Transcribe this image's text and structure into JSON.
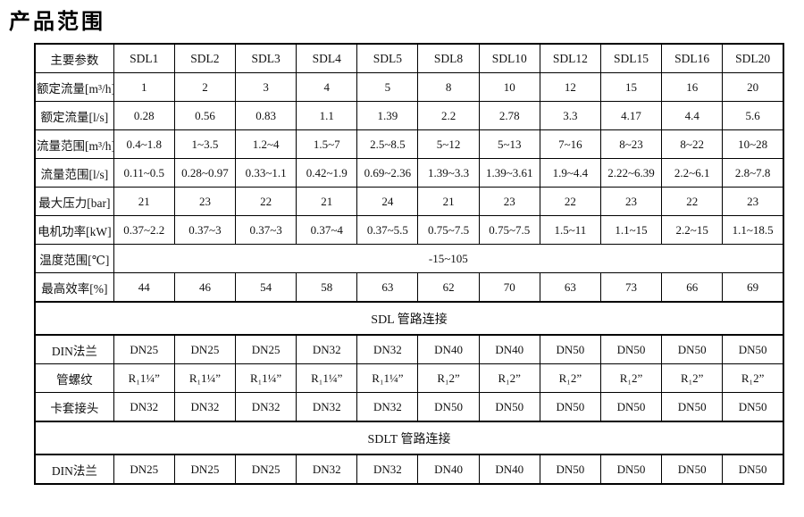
{
  "page_title": "产品范围",
  "table": {
    "header": {
      "param_label": "主要参数",
      "models": [
        "SDL1",
        "SDL2",
        "SDL3",
        "SDL4",
        "SDL5",
        "SDL8",
        "SDL10",
        "SDL12",
        "SDL15",
        "SDL16",
        "SDL20"
      ]
    },
    "rows": [
      {
        "type": "data",
        "name": "rated-flow-m3h",
        "label": "额定流量[m³/h]",
        "values": [
          "1",
          "2",
          "3",
          "4",
          "5",
          "8",
          "10",
          "12",
          "15",
          "16",
          "20"
        ]
      },
      {
        "type": "data",
        "name": "rated-flow-ls",
        "label": "额定流量[l/s]",
        "values": [
          "0.28",
          "0.56",
          "0.83",
          "1.1",
          "1.39",
          "2.2",
          "2.78",
          "3.3",
          "4.17",
          "4.4",
          "5.6"
        ]
      },
      {
        "type": "data",
        "name": "flow-range-m3h",
        "label": "流量范围[m³/h]",
        "values": [
          "0.4~1.8",
          "1~3.5",
          "1.2~4",
          "1.5~7",
          "2.5~8.5",
          "5~12",
          "5~13",
          "7~16",
          "8~23",
          "8~22",
          "10~28"
        ]
      },
      {
        "type": "data",
        "name": "flow-range-ls",
        "label": "流量范围[l/s]",
        "values": [
          "0.11~0.5",
          "0.28~0.97",
          "0.33~1.1",
          "0.42~1.9",
          "0.69~2.36",
          "1.39~3.3",
          "1.39~3.61",
          "1.9~4.4",
          "2.22~6.39",
          "2.2~6.1",
          "2.8~7.8"
        ]
      },
      {
        "type": "data",
        "name": "max-pressure-bar",
        "label": "最大压力[bar]",
        "values": [
          "21",
          "23",
          "22",
          "21",
          "24",
          "21",
          "23",
          "22",
          "23",
          "22",
          "23"
        ]
      },
      {
        "type": "data",
        "name": "motor-power-kw",
        "label": "电机功率[kW]",
        "values": [
          "0.37~2.2",
          "0.37~3",
          "0.37~3",
          "0.37~4",
          "0.37~5.5",
          "0.75~7.5",
          "0.75~7.5",
          "1.5~11",
          "1.1~15",
          "2.2~15",
          "1.1~18.5"
        ]
      },
      {
        "type": "merged",
        "name": "temperature-range",
        "label": "温度范围[℃]",
        "value": "-15~105"
      },
      {
        "type": "data",
        "name": "max-efficiency",
        "label": "最高效率[%]",
        "values": [
          "44",
          "46",
          "54",
          "58",
          "63",
          "62",
          "70",
          "63",
          "73",
          "66",
          "69"
        ]
      },
      {
        "type": "section",
        "name": "sdl-pipe-connection",
        "label": "SDL 管路连接"
      },
      {
        "type": "data",
        "name": "din-flange-sdl",
        "label": "DIN法兰",
        "values": [
          "DN25",
          "DN25",
          "DN25",
          "DN32",
          "DN32",
          "DN40",
          "DN40",
          "DN50",
          "DN50",
          "DN50",
          "DN50"
        ]
      },
      {
        "type": "data",
        "name": "pipe-thread",
        "label": "管螺纹",
        "values": [
          "R₁1¼”",
          "R₁1¼”",
          "R₁1¼”",
          "R₁1¼”",
          "R₁1¼”",
          "R₁2”",
          "R₁2”",
          "R₁2”",
          "R₁2”",
          "R₁2”",
          "R₁2”"
        ]
      },
      {
        "type": "data",
        "name": "compression-fitting",
        "label": "卡套接头",
        "values": [
          "DN32",
          "DN32",
          "DN32",
          "DN32",
          "DN32",
          "DN50",
          "DN50",
          "DN50",
          "DN50",
          "DN50",
          "DN50"
        ]
      },
      {
        "type": "section",
        "name": "sdlt-pipe-connection",
        "label": "SDLT 管路连接"
      },
      {
        "type": "data",
        "name": "din-flange-sdlt",
        "label": "DIN法兰",
        "values": [
          "DN25",
          "DN25",
          "DN25",
          "DN32",
          "DN32",
          "DN40",
          "DN40",
          "DN50",
          "DN50",
          "DN50",
          "DN50"
        ]
      }
    ]
  }
}
